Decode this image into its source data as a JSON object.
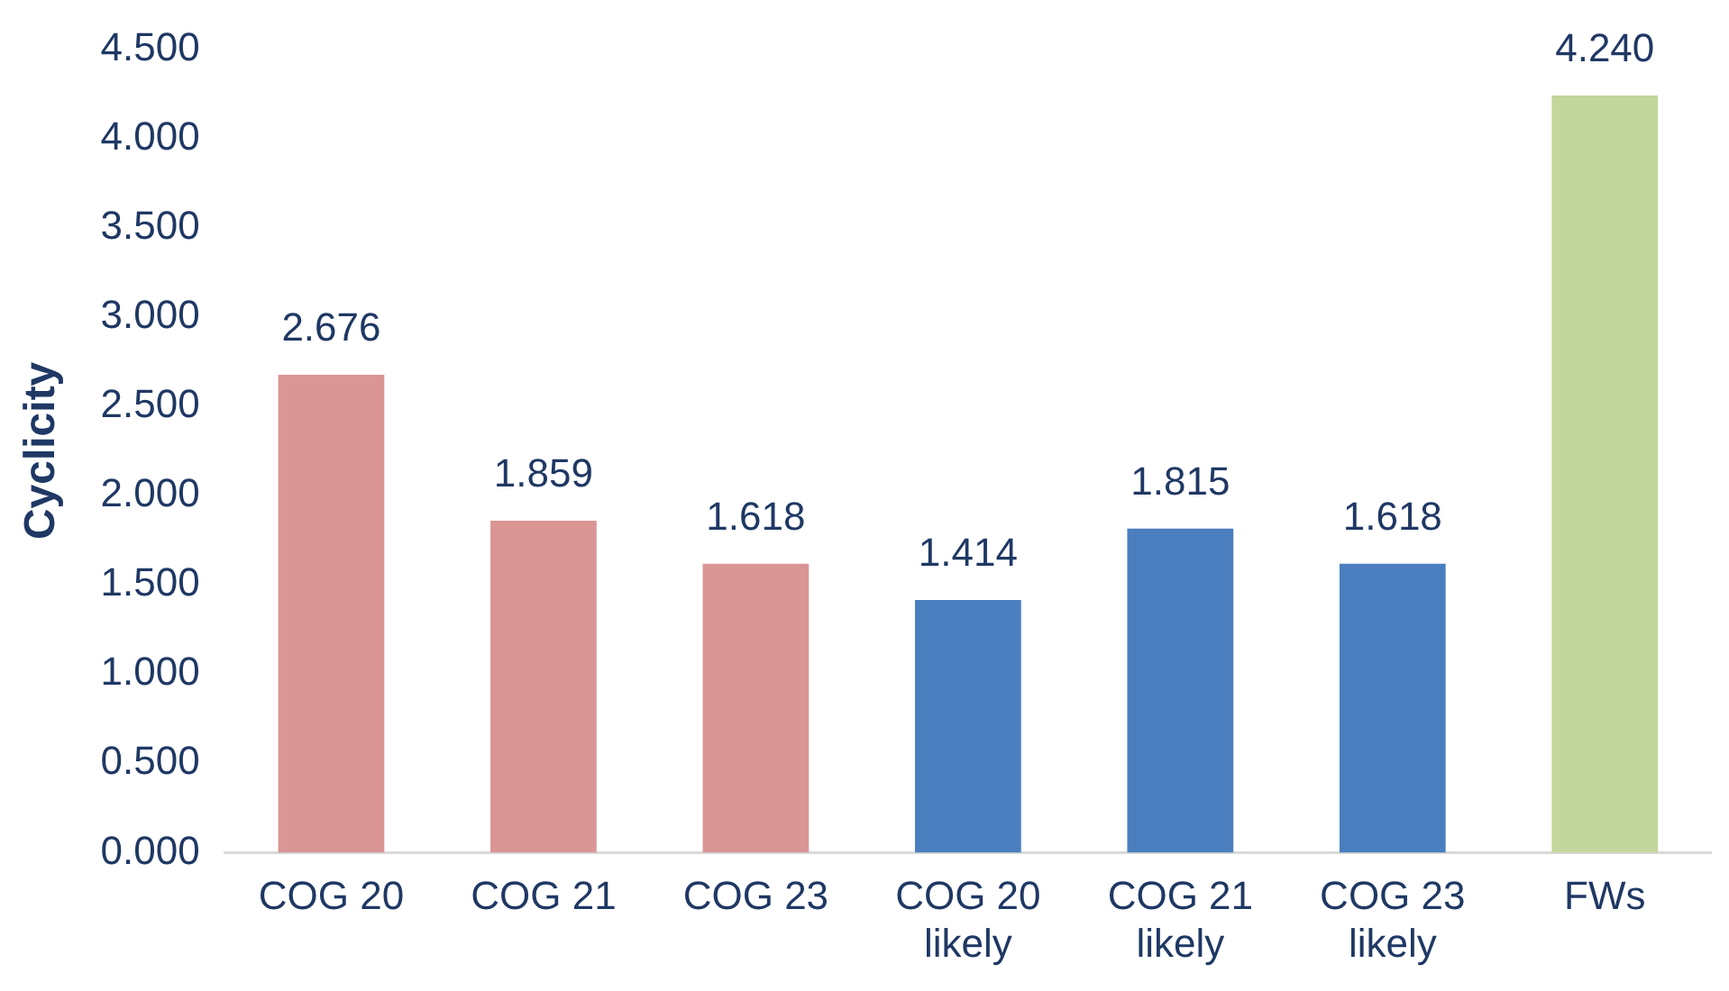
{
  "chart_data": {
    "type": "bar",
    "ylabel": "Cyclicity",
    "categories": [
      "COG 20",
      "COG 21",
      "COG 23",
      "COG 20\nlikely",
      "COG 21\nlikely",
      "COG 23\nlikely",
      "FWs"
    ],
    "values": [
      2.676,
      1.859,
      1.618,
      1.414,
      1.815,
      1.618,
      4.24
    ],
    "value_labels": [
      "2.676",
      "1.859",
      "1.618",
      "1.414",
      "1.815",
      "1.618",
      "4.240"
    ],
    "colors": [
      "#d99694",
      "#d99694",
      "#d99694",
      "#4a7ebf",
      "#4a7ebf",
      "#4a7ebf",
      "#c3d69b"
    ],
    "ylim": [
      0,
      4.5
    ],
    "yticks": [
      {
        "value": 0,
        "label": "0.000"
      },
      {
        "value": 0.5,
        "label": "0.500"
      },
      {
        "value": 1,
        "label": "1.000"
      },
      {
        "value": 1.5,
        "label": "1.500"
      },
      {
        "value": 2,
        "label": "2.000"
      },
      {
        "value": 2.5,
        "label": "2.500"
      },
      {
        "value": 3,
        "label": "3.000"
      },
      {
        "value": 3.5,
        "label": "3.500"
      },
      {
        "value": 4,
        "label": "4.000"
      },
      {
        "value": 4.5,
        "label": "4.500"
      }
    ],
    "grid": false,
    "legend": false
  }
}
